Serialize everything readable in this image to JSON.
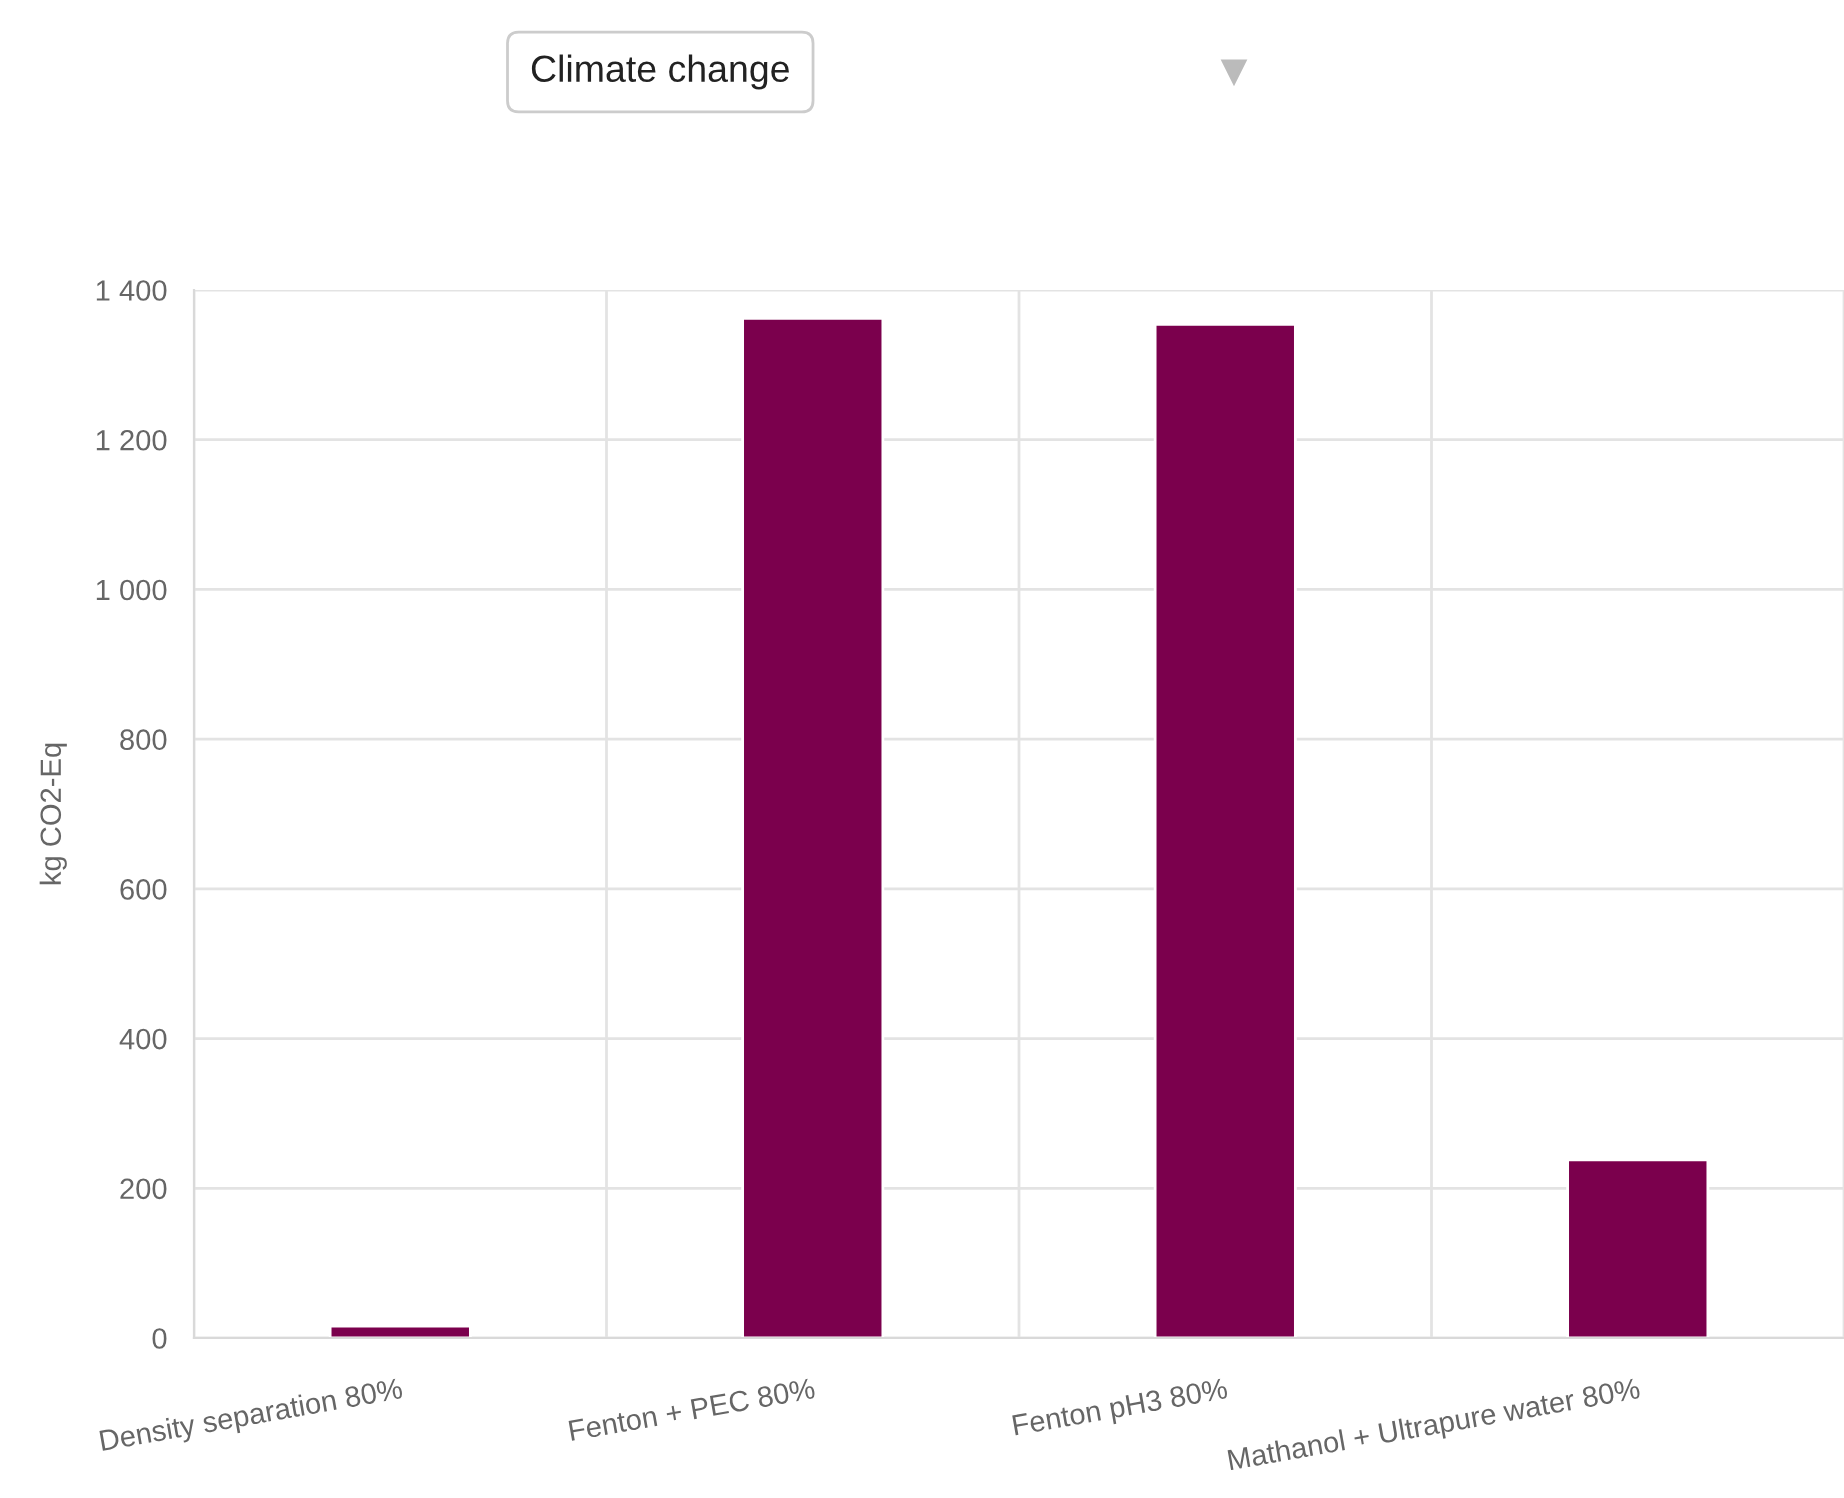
{
  "chart_data": {
    "type": "bar",
    "title": "Climate change",
    "ylabel": "kg CO2-Eq",
    "categories": [
      "Density separation 80%",
      "Fenton + PEC 80%",
      "Fenton pH3 80%",
      "Mathanol + Ultrapure water 80%"
    ],
    "values": [
      16,
      1362,
      1354,
      238
    ],
    "color": "#7b004d",
    "ylim": [
      0,
      1400
    ],
    "yticks": [
      0,
      200,
      400,
      600,
      800,
      {
        "value": 1000,
        "label": "1 000"
      },
      {
        "value": 1200,
        "label": "1 200"
      },
      {
        "value": 1400,
        "label": "1 400"
      }
    ],
    "grid": true,
    "legend": false
  }
}
